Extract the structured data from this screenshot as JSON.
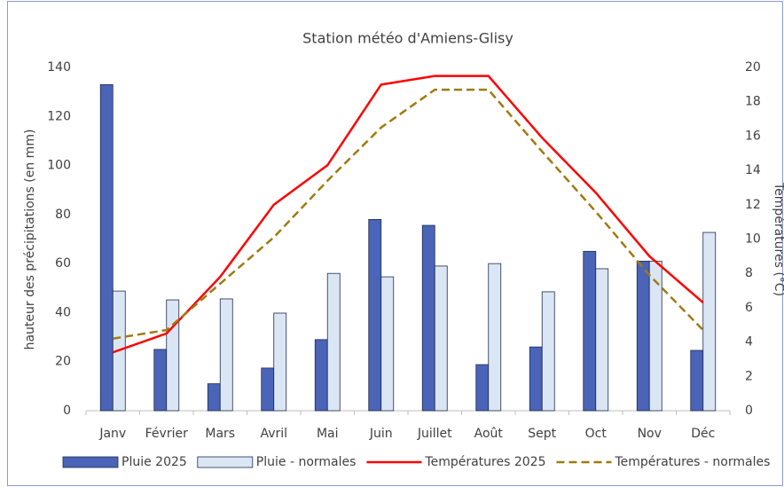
{
  "chart_data": {
    "type": "bar-line",
    "title": "Station météo d'Amiens-Glisy",
    "y_label": "hauteur des précipitations (en mm)",
    "y2_label": "Températures (°C)",
    "categories": [
      "Janv",
      "Février",
      "Mars",
      "Avril",
      "Mai",
      "Juin",
      "Juillet",
      "Août",
      "Sept",
      "Oct",
      "Nov",
      "Déc"
    ],
    "series": [
      {
        "name": "Pluie 2025",
        "kind": "bar",
        "color": "#4a64b8",
        "values": [
          133,
          25,
          11,
          17.4,
          29,
          78,
          75.6,
          18.8,
          26,
          65,
          61,
          24.6
        ]
      },
      {
        "name": "Pluie - normales",
        "kind": "bar",
        "color": "#dbe6f4",
        "values": [
          48.8,
          45.2,
          45.6,
          39.8,
          56,
          54.6,
          59,
          60,
          48.5,
          57.9,
          61,
          72.7
        ]
      },
      {
        "name": "Températures 2025",
        "kind": "line",
        "axis": "y2",
        "color": "#ff0000",
        "dashed": false,
        "values": [
          3.4,
          4.5,
          7.8,
          12.0,
          14.3,
          19.0,
          19.5,
          19.5,
          15.9,
          12.7,
          9.0,
          6.3
        ]
      },
      {
        "name": "Températures - normales",
        "kind": "line",
        "axis": "y2",
        "color": "#a07a10",
        "dashed": true,
        "values": [
          4.2,
          4.7,
          7.4,
          10.1,
          13.4,
          16.5,
          18.7,
          18.7,
          15.1,
          11.6,
          7.9,
          4.7
        ]
      }
    ],
    "ylim": [
      0,
      140
    ],
    "yticks": [
      0,
      20,
      40,
      60,
      80,
      100,
      120,
      140
    ],
    "y2lim": [
      0,
      20
    ],
    "y2ticks": [
      0,
      2,
      4,
      6,
      8,
      10,
      12,
      14,
      16,
      18,
      20
    ],
    "grid": false,
    "legend": "bottom"
  }
}
